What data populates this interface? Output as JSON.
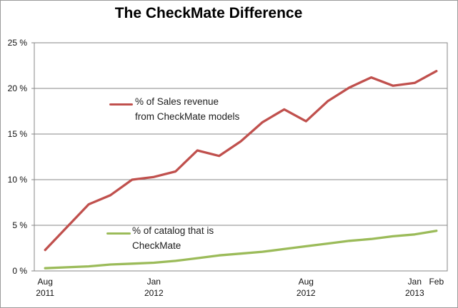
{
  "chart_data": {
    "type": "line",
    "title": "The CheckMate Difference",
    "xlabel": "",
    "ylabel": "",
    "ylim": [
      0,
      25
    ],
    "ytick_step": 5,
    "ytick_labels": [
      "0 %",
      "5 %",
      "10 %",
      "15 %",
      "20 %",
      "25 %"
    ],
    "grid": true,
    "legend_position": "inside-plot",
    "categories": [
      "Aug 2011",
      "Sep 2011",
      "Oct 2011",
      "Nov 2011",
      "Dec 2011",
      "Jan 2012",
      "Feb 2012",
      "Mar 2012",
      "Apr 2012",
      "May 2012",
      "Jun 2012",
      "Jul 2012",
      "Aug 2012",
      "Sep 2012",
      "Oct 2012",
      "Nov 2012",
      "Dec 2012",
      "Jan 2013",
      "Feb 2013"
    ],
    "x_tick_labels": [
      {
        "index": 0,
        "line1": "Aug",
        "line2": "2011"
      },
      {
        "index": 5,
        "line1": "Jan",
        "line2": "2012"
      },
      {
        "index": 12,
        "line1": "Aug",
        "line2": "2012"
      },
      {
        "index": 17,
        "line1": "Jan",
        "line2": "2013"
      },
      {
        "index": 18,
        "line1": "Feb",
        "line2": ""
      }
    ],
    "series": [
      {
        "name": "% of Sales revenue from CheckMate models",
        "color": "#C0504D",
        "values": [
          2.3,
          4.8,
          7.3,
          8.3,
          10.0,
          10.3,
          10.9,
          13.2,
          12.6,
          14.2,
          16.3,
          17.7,
          16.4,
          18.6,
          20.1,
          21.2,
          20.3,
          20.6,
          21.9
        ]
      },
      {
        "name": "% of catalog that is CheckMate",
        "color": "#9BBB59",
        "values": [
          0.3,
          0.4,
          0.5,
          0.7,
          0.8,
          0.9,
          1.1,
          1.4,
          1.7,
          1.9,
          2.1,
          2.4,
          2.7,
          3.0,
          3.3,
          3.5,
          3.8,
          4.0,
          4.4
        ]
      }
    ],
    "legend": [
      {
        "lines": [
          "% of Sales revenue",
          "from CheckMate models"
        ],
        "color": "#C0504D"
      },
      {
        "lines": [
          "% of catalog that is",
          "CheckMate"
        ],
        "color": "#9BBB59"
      }
    ]
  }
}
